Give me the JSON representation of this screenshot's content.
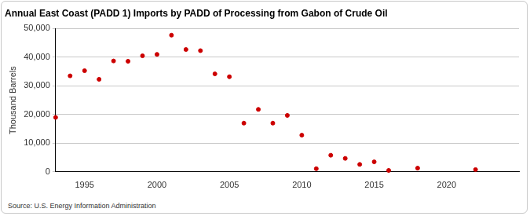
{
  "chart_data": {
    "type": "scatter",
    "title": "Annual East Coast (PADD 1) Imports by PADD of Processing from Gabon of Crude Oil",
    "y_label": "Thousand Barrels",
    "source": "Source: U.S. Energy Information Administration",
    "x": [
      1993,
      1994,
      1995,
      1996,
      1997,
      1998,
      1999,
      2000,
      2001,
      2002,
      2003,
      2004,
      2005,
      2006,
      2007,
      2008,
      2009,
      2010,
      2011,
      2012,
      2013,
      2014,
      2015,
      2016,
      2018,
      2022
    ],
    "values": [
      19000,
      33500,
      35300,
      32300,
      38700,
      38600,
      40500,
      41000,
      47700,
      42700,
      42300,
      34200,
      33200,
      17000,
      21800,
      17000,
      19700,
      12800,
      1100,
      5800,
      4700,
      2600,
      3500,
      500,
      1300,
      800
    ],
    "color": "#cc0000",
    "marker": "circle",
    "xlim": [
      1993,
      2025
    ],
    "xticks": [
      1995,
      2000,
      2005,
      2010,
      2015,
      2020
    ],
    "ylim": [
      0,
      50000
    ],
    "yticks": [
      0,
      {
        "value": 10000,
        "label": "10,000"
      },
      {
        "value": 20000,
        "label": "20,000"
      },
      {
        "value": 30000,
        "label": "30,000"
      },
      {
        "value": 40000,
        "label": "40,000"
      },
      {
        "value": 50000,
        "label": "50,000"
      }
    ],
    "grid": true
  }
}
